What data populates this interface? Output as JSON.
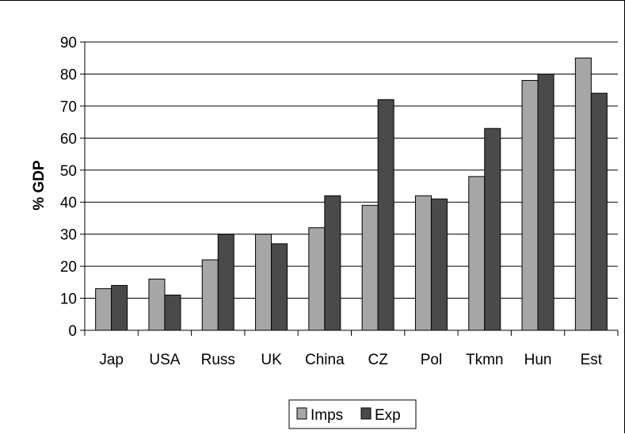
{
  "chart_data": {
    "type": "bar",
    "title": "",
    "xlabel": "",
    "ylabel": "% GDP",
    "ylim": [
      0,
      90
    ],
    "yticks": [
      0,
      10,
      20,
      30,
      40,
      50,
      60,
      70,
      80,
      90
    ],
    "grid": "horizontal",
    "legend_position": "bottom",
    "categories": [
      "Jap",
      "USA",
      "Russ",
      "UK",
      "China",
      "CZ",
      "Pol",
      "Tkmn",
      "Hun",
      "Est"
    ],
    "series": [
      {
        "name": "Imps",
        "color": "#a6a6a6",
        "values": [
          13,
          16,
          22,
          30,
          32,
          39,
          42,
          48,
          78,
          85
        ]
      },
      {
        "name": "Exp",
        "color": "#4a4a4a",
        "values": [
          14,
          11,
          30,
          27,
          42,
          72,
          41,
          63,
          80,
          74
        ]
      }
    ]
  }
}
